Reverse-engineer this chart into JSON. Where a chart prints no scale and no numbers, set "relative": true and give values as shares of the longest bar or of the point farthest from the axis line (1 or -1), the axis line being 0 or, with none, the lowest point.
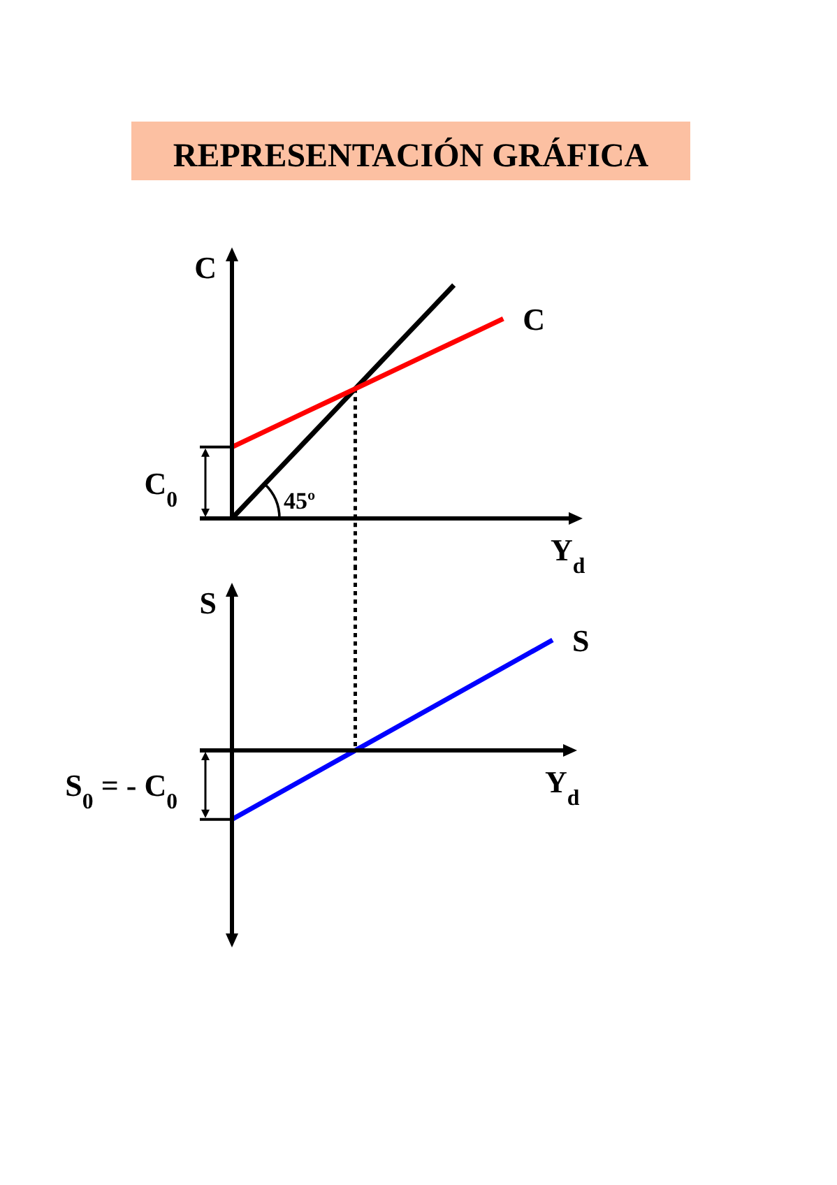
{
  "chart_data": [
    {
      "type": "line",
      "title": "REPRESENTACIÓN GRÁFICA",
      "ylabel": "C",
      "xlabel": "Y$_{d}$",
      "relative": true,
      "categories": [
        null,
        null,
        null,
        null,
        null,
        null,
        null,
        null,
        null,
        null,
        null,
        null,
        null,
        null
      ],
      "series": [
        {
          "color": "#000000",
          "values": [
            0,
            0.111,
            0.222,
            0.333,
            0.444,
            0.556,
            0.667,
            0.778,
            0.889,
            1,
            null,
            null,
            null,
            null
          ]
        },
        {
          "name": "C",
          "color": "#ff0000",
          "values": [
            0.306,
            0.356,
            0.406,
            0.456,
            0.506,
            0.556,
            0.606,
            0.656,
            0.706,
            0.756,
            0.806,
            0.856,
            null,
            null
          ]
        }
      ],
      "annotations": [
        "C$_{0}$",
        "45º"
      ]
    },
    {
      "type": "line",
      "ylabel": "S",
      "xlabel": "Y$_{d}$",
      "relative": true,
      "categories": [
        null,
        null,
        null,
        null,
        null,
        null,
        null,
        null,
        null,
        null,
        null,
        null,
        null,
        null
      ],
      "series": [
        {
          "name": "S",
          "color": "#0000ff",
          "values": [
            -0.625,
            -0.5,
            -0.375,
            -0.25,
            -0.125,
            0,
            0.125,
            0.25,
            0.375,
            0.5,
            0.625,
            0.75,
            0.875,
            1
          ]
        }
      ],
      "annotations": [
        "S$_{0}$ = - C$_{0}$"
      ]
    }
  ]
}
